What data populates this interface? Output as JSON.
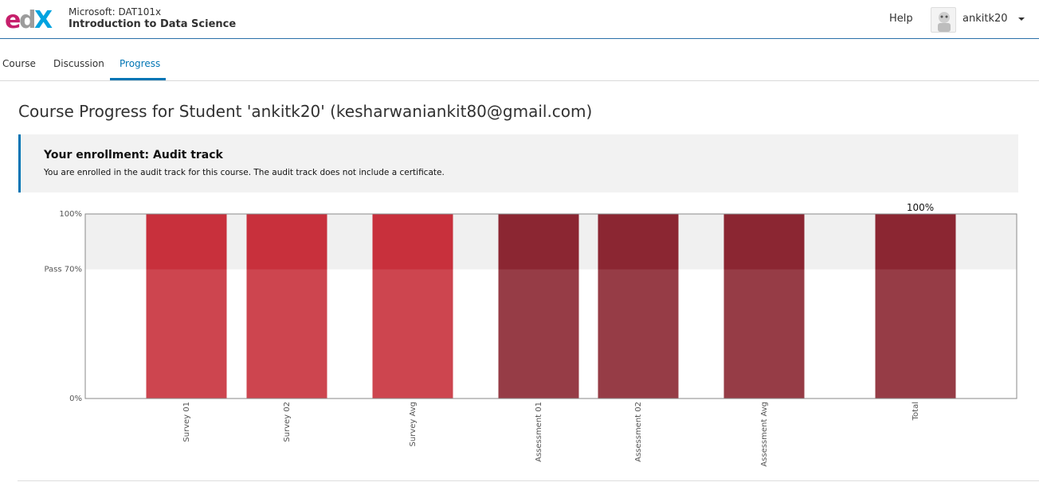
{
  "header": {
    "course_org": "Microsoft: DAT101x",
    "course_name": "Introduction to Data Science",
    "help": "Help",
    "username": "ankitk20",
    "logo_text": "edX"
  },
  "tabs": [
    {
      "label": "Course",
      "active": false
    },
    {
      "label": "Discussion",
      "active": false
    },
    {
      "label": "Progress",
      "active": true
    }
  ],
  "page_title": "Course Progress for Student 'ankitk20' (kesharwaniankit80@gmail.com)",
  "enrollment": {
    "title": "Your enrollment: Audit track",
    "message": "You are enrolled in the audit track for this course. The audit track does not include a certificate."
  },
  "colors": {
    "accent": "#0075b4",
    "survey_bar": "#c8303c",
    "assessment_bar": "#8b2632",
    "total_bar": "#8b2632",
    "pass_band": "#f0f0f0"
  },
  "chart_data": {
    "type": "bar",
    "categories": [
      "Survey 01",
      "Survey 02",
      "Survey Avg",
      "Assessment 01",
      "Assessment 02",
      "Assessment Avg",
      "Total"
    ],
    "values": [
      100,
      100,
      100,
      100,
      100,
      100,
      100
    ],
    "groups": [
      "survey",
      "survey",
      "survey",
      "assessment",
      "assessment",
      "assessment",
      "total"
    ],
    "ylim": [
      0,
      100
    ],
    "yticks": [
      {
        "value": 100,
        "label": "100%"
      },
      {
        "value": 70,
        "label": "Pass 70%"
      },
      {
        "value": 0,
        "label": "0%"
      }
    ],
    "pass_threshold": 70,
    "total_label": "100%",
    "xlabel": "",
    "ylabel": ""
  }
}
